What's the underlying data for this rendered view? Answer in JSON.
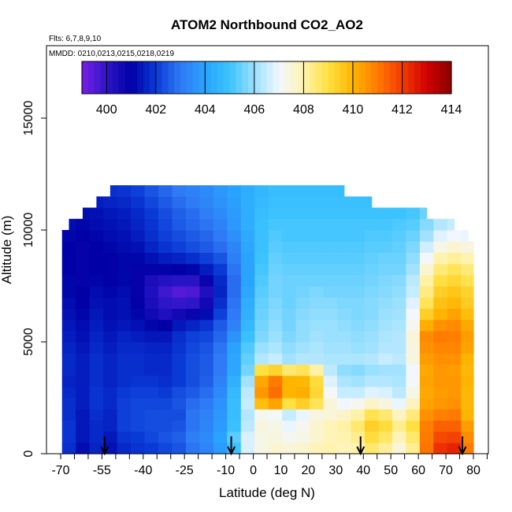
{
  "chart_data": {
    "type": "heatmap",
    "title": "ATOM2 Northbound CO2_AO2",
    "annotations": [
      "Flts: 6,7,8,9,10",
      "MMDD: 0210,0213,0215,0218,0219"
    ],
    "xlabel": "Latitude (deg N)",
    "ylabel": "Altitude (m)",
    "xlim": [
      -70,
      85
    ],
    "ylim": [
      0,
      17500
    ],
    "x_ticks": [
      -70,
      -55,
      -40,
      -25,
      -10,
      0,
      10,
      20,
      30,
      40,
      50,
      60,
      70,
      80
    ],
    "x_tick_labels": [
      "-70",
      "-55",
      "-40",
      "-25",
      "-10",
      "0",
      "10",
      "20",
      "30",
      "40",
      "50",
      "60",
      "70",
      "80"
    ],
    "x_minor_ticks": [
      -65,
      -60,
      -50,
      -45,
      -35,
      -30,
      -20,
      -15,
      -5,
      5,
      15,
      25,
      35,
      45,
      55,
      65,
      75,
      85
    ],
    "y_ticks": [
      0,
      5000,
      10000,
      15000
    ],
    "y_tick_labels": [
      "0",
      "5000",
      "10000",
      "15000"
    ],
    "colorbar": {
      "min": 399,
      "max": 414,
      "ticks": [
        400,
        402,
        404,
        406,
        408,
        410,
        412,
        414
      ],
      "tick_labels": [
        "400",
        "402",
        "404",
        "406",
        "408",
        "410",
        "412",
        "414"
      ],
      "colors": [
        "#7a1ee6",
        "#2d16c8",
        "#0000a6",
        "#0a3ad6",
        "#2f7af5",
        "#2aa3ff",
        "#3cc3ff",
        "#9ae0ff",
        "#f2f7ff",
        "#fff3b0",
        "#ffe042",
        "#ffb400",
        "#ff7a00",
        "#f23c00",
        "#d20000",
        "#8a0000"
      ]
    },
    "profile_markers_lat": [
      -54,
      -8,
      39,
      76
    ],
    "grid_lat": [
      -67,
      -62,
      -57,
      -52,
      -47,
      -42,
      -37,
      -32,
      -27,
      -22,
      -17,
      -12,
      -7,
      -2,
      3,
      8,
      13,
      18,
      23,
      28,
      33,
      38,
      43,
      48,
      53,
      58,
      63,
      68,
      73,
      78
    ],
    "grid_alt_bands": [
      250,
      750,
      1250,
      1750,
      2250,
      2750,
      3250,
      3750,
      4250,
      4750,
      5250,
      5750,
      6250,
      6750,
      7250,
      7750,
      8250,
      8750,
      9250,
      9750,
      10250,
      10750,
      11250,
      11750
    ],
    "values": [
      [
        401.8,
        401.2,
        401.6,
        401.3,
        401.7,
        401.9,
        402.0,
        402.2,
        402.4,
        402.9,
        403.3,
        403.8,
        405.0,
        406.7,
        407.3,
        407.6,
        407.5,
        407.6,
        407.9,
        408.0,
        407.9,
        408.0,
        408.6,
        408.2,
        407.5,
        408.3,
        411.1,
        412.2,
        412.4,
        411.0
      ],
      [
        401.9,
        401.4,
        401.7,
        401.4,
        401.9,
        402.0,
        402.2,
        402.4,
        402.6,
        403.1,
        403.4,
        404.0,
        405.3,
        406.7,
        407.3,
        407.4,
        407.2,
        407.3,
        407.6,
        407.9,
        408.0,
        408.3,
        409.1,
        408.7,
        407.9,
        408.6,
        411.0,
        411.8,
        411.9,
        410.7
      ],
      [
        401.9,
        401.4,
        401.7,
        401.6,
        402.1,
        402.2,
        402.3,
        402.3,
        402.4,
        402.9,
        403.3,
        403.8,
        404.9,
        406.4,
        407.4,
        407.3,
        406.9,
        407.2,
        407.6,
        407.9,
        408.1,
        408.6,
        409.4,
        409.1,
        408.3,
        409.0,
        410.9,
        411.4,
        411.4,
        410.4
      ],
      [
        401.8,
        401.4,
        401.8,
        401.6,
        402.1,
        402.2,
        402.3,
        402.3,
        402.3,
        402.9,
        403.2,
        403.7,
        404.8,
        406.3,
        407.2,
        407.1,
        406.5,
        406.9,
        407.4,
        407.5,
        407.7,
        408.1,
        408.9,
        408.6,
        407.8,
        408.5,
        410.6,
        410.9,
        411.0,
        410.0
      ],
      [
        401.8,
        401.5,
        401.9,
        401.7,
        402.1,
        402.2,
        402.2,
        402.2,
        402.4,
        402.8,
        403.0,
        403.6,
        404.8,
        406.5,
        409.8,
        410.3,
        409.0,
        409.4,
        408.8,
        407.5,
        407.0,
        407.2,
        407.7,
        407.4,
        406.9,
        407.8,
        410.3,
        410.5,
        410.6,
        409.9
      ],
      [
        401.7,
        401.5,
        401.9,
        401.7,
        402.0,
        402.1,
        402.1,
        402.0,
        402.3,
        402.5,
        402.8,
        403.4,
        404.7,
        406.4,
        410.5,
        411.2,
        410.0,
        410.1,
        409.2,
        407.1,
        406.5,
        406.5,
        406.8,
        406.7,
        406.4,
        407.3,
        410.2,
        410.4,
        410.5,
        409.9
      ],
      [
        401.6,
        401.5,
        401.8,
        401.6,
        401.8,
        401.9,
        401.9,
        401.8,
        402.0,
        402.3,
        402.6,
        403.2,
        404.4,
        406.1,
        410.2,
        411.0,
        410.0,
        409.9,
        409.1,
        406.8,
        406.2,
        406.1,
        406.3,
        406.3,
        406.2,
        407.1,
        410.3,
        410.5,
        410.5,
        410.0
      ],
      [
        401.7,
        401.5,
        401.8,
        401.6,
        401.8,
        401.8,
        401.7,
        401.7,
        402.0,
        402.3,
        402.5,
        403.0,
        404.1,
        405.6,
        409.0,
        409.3,
        408.6,
        408.8,
        408.1,
        406.4,
        405.9,
        405.8,
        406.0,
        406.1,
        406.1,
        407.0,
        410.2,
        410.5,
        410.4,
        409.9
      ],
      [
        401.7,
        401.5,
        401.8,
        401.6,
        401.8,
        401.8,
        401.7,
        401.7,
        402.0,
        402.3,
        402.5,
        403.0,
        404.1,
        405.4,
        406.3,
        406.5,
        406.1,
        406.3,
        406.3,
        406.2,
        406.2,
        406.2,
        406.3,
        406.5,
        406.4,
        407.4,
        410.4,
        410.6,
        410.6,
        410.0
      ],
      [
        401.6,
        401.4,
        401.7,
        401.5,
        401.7,
        401.7,
        401.6,
        401.6,
        401.9,
        402.2,
        402.4,
        402.9,
        404.0,
        405.2,
        406.0,
        406.2,
        405.9,
        406.1,
        406.2,
        406.1,
        406.1,
        406.0,
        406.1,
        406.3,
        406.3,
        407.4,
        410.6,
        410.8,
        410.8,
        410.3
      ],
      [
        401.5,
        401.3,
        401.6,
        401.4,
        401.6,
        401.5,
        401.4,
        401.4,
        401.8,
        402.1,
        402.2,
        402.7,
        403.6,
        404.9,
        405.7,
        406.0,
        405.7,
        405.9,
        406.1,
        406.0,
        406.0,
        405.9,
        406.0,
        406.2,
        406.3,
        407.5,
        410.7,
        411.0,
        410.9,
        410.4
      ],
      [
        401.4,
        401.2,
        401.5,
        401.3,
        401.4,
        401.3,
        401.1,
        401.0,
        401.4,
        401.6,
        401.9,
        402.5,
        403.2,
        404.6,
        405.6,
        405.9,
        405.6,
        405.9,
        406.0,
        406.0,
        405.9,
        405.8,
        405.9,
        406.1,
        406.2,
        407.2,
        410.1,
        410.6,
        410.7,
        410.2
      ],
      [
        401.3,
        401.1,
        401.4,
        401.2,
        401.3,
        401.1,
        400.6,
        400.3,
        400.6,
        400.8,
        401.2,
        402.1,
        403.0,
        404.4,
        405.5,
        405.8,
        405.6,
        405.8,
        405.9,
        405.9,
        405.8,
        405.7,
        405.8,
        406.0,
        406.1,
        407.0,
        409.4,
        410.0,
        410.3,
        409.8
      ],
      [
        401.2,
        401.0,
        401.3,
        401.2,
        401.3,
        401.0,
        400.4,
        400.0,
        399.9,
        400.0,
        400.6,
        401.8,
        402.9,
        404.3,
        405.4,
        405.7,
        405.5,
        405.7,
        405.8,
        405.8,
        405.7,
        405.7,
        405.8,
        405.9,
        406.0,
        406.8,
        408.8,
        409.7,
        409.9,
        409.5
      ],
      [
        401.1,
        401.0,
        401.2,
        401.1,
        401.2,
        400.9,
        400.3,
        399.8,
        399.5,
        399.6,
        400.3,
        401.6,
        402.8,
        404.1,
        405.3,
        405.6,
        405.5,
        405.6,
        405.7,
        405.6,
        405.6,
        405.6,
        405.7,
        405.8,
        405.9,
        406.5,
        408.4,
        409.4,
        409.6,
        409.3
      ],
      [
        401.1,
        400.9,
        401.1,
        401.0,
        401.1,
        400.9,
        400.4,
        400.2,
        400.1,
        400.1,
        400.8,
        401.7,
        402.8,
        404.0,
        405.2,
        405.6,
        405.5,
        405.5,
        405.5,
        405.5,
        405.5,
        405.5,
        405.6,
        405.7,
        405.8,
        406.4,
        408.1,
        409.0,
        409.2,
        408.9
      ],
      [
        401.0,
        400.9,
        401.0,
        401.0,
        401.1,
        400.9,
        400.9,
        400.9,
        401.0,
        401.1,
        401.5,
        402.0,
        402.9,
        404.0,
        405.1,
        405.5,
        405.4,
        405.4,
        405.4,
        405.4,
        405.4,
        405.4,
        405.5,
        405.6,
        405.6,
        406.1,
        407.6,
        408.5,
        408.8,
        408.5
      ],
      [
        401.0,
        400.9,
        401.0,
        401.0,
        401.1,
        401.1,
        401.3,
        401.5,
        401.6,
        401.8,
        402.1,
        402.4,
        403.1,
        404.0,
        405.0,
        405.4,
        405.3,
        405.3,
        405.3,
        405.3,
        405.3,
        405.3,
        405.4,
        405.5,
        405.5,
        405.9,
        407.1,
        408.0,
        408.2,
        408.0
      ],
      [
        401.0,
        400.9,
        401.0,
        401.1,
        401.2,
        401.3,
        401.6,
        401.9,
        402.1,
        402.3,
        402.5,
        402.8,
        403.3,
        404.1,
        404.9,
        405.3,
        405.2,
        405.2,
        405.2,
        405.2,
        405.2,
        405.2,
        405.3,
        405.3,
        405.4,
        405.7,
        406.6,
        407.3,
        407.6,
        407.4
      ],
      [
        401.1,
        401.0,
        401.1,
        401.2,
        401.3,
        401.5,
        401.8,
        402.1,
        402.3,
        402.5,
        402.7,
        403.0,
        403.5,
        404.2,
        404.9,
        405.2,
        405.1,
        405.1,
        405.1,
        405.1,
        405.1,
        405.1,
        405.2,
        405.2,
        405.3,
        405.5,
        406.1,
        406.8,
        407.0,
        406.9
      ],
      [
        401.2,
        401.1,
        401.2,
        401.3,
        401.4,
        401.6,
        401.9,
        402.2,
        402.5,
        402.7,
        402.9,
        403.2,
        403.7,
        404.3,
        404.9,
        405.1,
        405.1,
        405.1,
        405.1,
        405.1,
        405.1,
        405.1,
        405.1,
        405.1,
        405.2,
        405.3,
        405.8,
        406.3,
        406.5,
        406.4
      ],
      [
        401.3,
        401.2,
        401.3,
        401.4,
        401.5,
        401.7,
        402.0,
        402.3,
        402.6,
        402.8,
        403.1,
        403.4,
        403.8,
        404.3,
        404.8,
        405.0,
        405.0,
        405.0,
        405.0,
        405.0,
        405.0,
        405.0,
        405.0,
        405.0,
        405.0,
        405.1,
        405.5,
        405.9,
        406.1,
        406.0
      ],
      [
        401.5,
        401.4,
        401.5,
        401.6,
        401.7,
        401.9,
        402.2,
        402.5,
        402.8,
        403.0,
        403.3,
        403.6,
        403.9,
        404.3,
        404.7,
        404.9,
        404.9,
        404.9,
        404.9,
        404.9,
        404.9,
        404.9,
        404.9,
        404.9,
        404.9,
        405.0,
        405.3,
        405.6,
        405.8,
        405.7
      ],
      [
        401.7,
        401.6,
        401.7,
        401.8,
        401.9,
        402.1,
        402.4,
        402.7,
        403.0,
        403.2,
        403.4,
        403.7,
        404.0,
        404.3,
        404.6,
        404.8,
        404.8,
        404.8,
        404.8,
        404.8,
        404.8,
        404.8,
        404.8,
        404.8,
        404.8,
        404.9,
        405.1,
        405.4,
        405.5,
        405.5
      ]
    ],
    "coverage_lat_min_by_band": [
      -70,
      -70,
      -70,
      -70,
      -70,
      -70,
      -70,
      -70,
      -70,
      -70,
      -70,
      -70,
      -70,
      -70,
      -70,
      -70,
      -70,
      -70,
      -70,
      -70,
      -67,
      -62,
      -57,
      -52
    ],
    "coverage_lat_max_by_band": [
      80,
      80,
      80,
      80,
      80,
      80,
      80,
      80,
      80,
      80,
      80,
      80,
      80,
      80,
      80,
      80,
      80,
      80,
      80,
      78,
      73,
      63,
      43,
      33
    ]
  }
}
